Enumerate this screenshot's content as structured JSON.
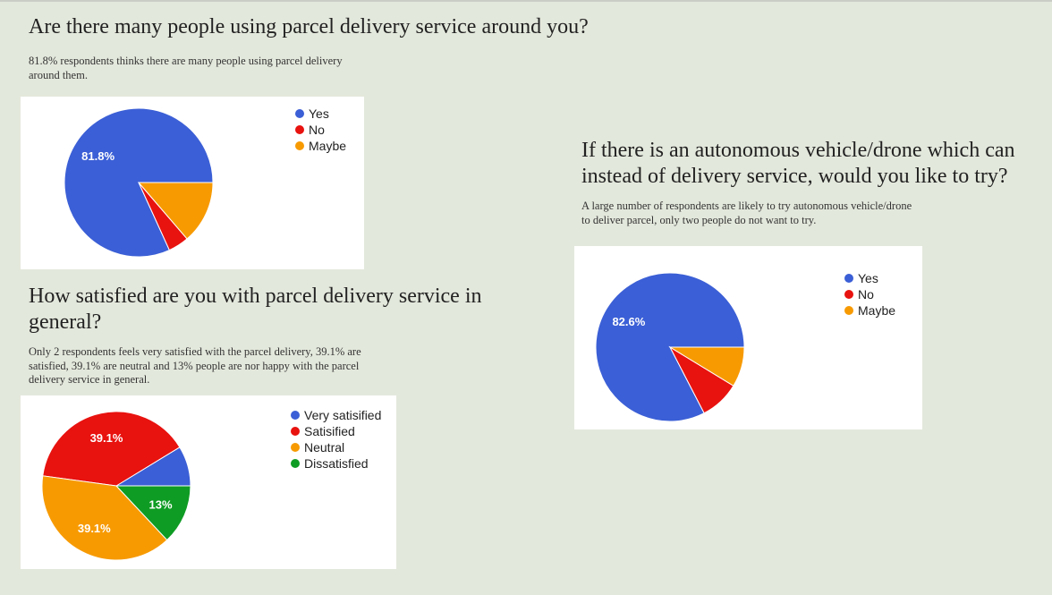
{
  "sections": [
    {
      "heading": "Are there many people using parcel delivery service around you?",
      "description_lines": [
        "81.8% respondents thinks there are many people using parcel delivery",
        "around them."
      ]
    },
    {
      "heading_lines": [
        "How satisfied are you with parcel delivery service in",
        "general?"
      ],
      "description_lines": [
        "Only 2 respondents feels very satisfied with the parcel delivery, 39.1% are",
        "satisfied, 39.1% are neutral and 13% people are nor happy with the parcel",
        "delivery service in general."
      ]
    },
    {
      "heading_lines": [
        "If there is an autonomous vehicle/drone which can",
        "instead of delivery service, would you like to try?"
      ],
      "description_lines": [
        "A large number of respondents are likely to try autonomous vehicle/drone",
        "to deliver parcel, only two people do not want to try."
      ]
    }
  ],
  "colors": {
    "background": "#e3e8dc",
    "blue": "#3b5fd6",
    "red": "#e8120f",
    "orange": "#f79a02",
    "green": "#0f9c24"
  },
  "chart_data": [
    {
      "type": "pie",
      "legend_position": "right",
      "series": [
        {
          "name": "Yes",
          "value": 81.8,
          "color": "#3b5fd6",
          "label": "81.8%"
        },
        {
          "name": "No",
          "value": 4.5,
          "color": "#e8120f",
          "label": ""
        },
        {
          "name": "Maybe",
          "value": 13.7,
          "color": "#f79a02",
          "label": ""
        }
      ]
    },
    {
      "type": "pie",
      "legend_position": "right",
      "series": [
        {
          "name": "Very satisified",
          "value": 8.7,
          "color": "#3b5fd6",
          "label": ""
        },
        {
          "name": "Satisified",
          "value": 39.1,
          "color": "#e8120f",
          "label": "39.1%"
        },
        {
          "name": "Neutral",
          "value": 39.1,
          "color": "#f79a02",
          "label": "39.1%"
        },
        {
          "name": "Dissatisfied",
          "value": 13,
          "color": "#0f9c24",
          "label": "13%"
        }
      ]
    },
    {
      "type": "pie",
      "legend_position": "right",
      "series": [
        {
          "name": "Yes",
          "value": 82.6,
          "color": "#3b5fd6",
          "label": "82.6%"
        },
        {
          "name": "No",
          "value": 8.7,
          "color": "#e8120f",
          "label": ""
        },
        {
          "name": "Maybe",
          "value": 8.7,
          "color": "#f79a02",
          "label": ""
        }
      ]
    }
  ]
}
